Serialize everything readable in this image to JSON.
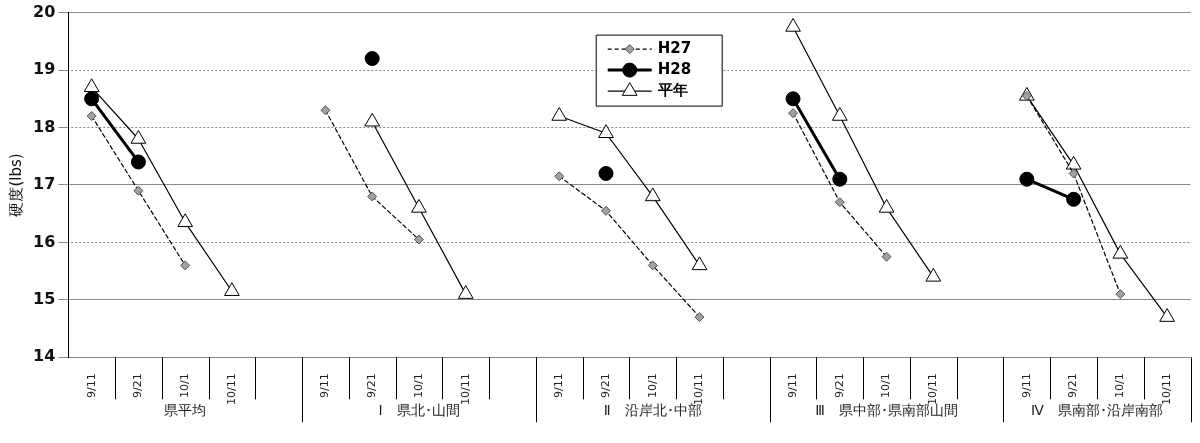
{
  "chart_data": {
    "type": "line",
    "ylabel": "硬度(lbs)",
    "categories": [
      "9/11",
      "9/21",
      "10/1",
      "10/11",
      null,
      "9/11",
      "9/21",
      "10/1",
      "10/11",
      null,
      "9/11",
      "9/21",
      "10/1",
      "10/11",
      null,
      "9/11",
      "9/21",
      "10/1",
      "10/11",
      null,
      "9/11",
      "9/21",
      "10/1",
      "10/11"
    ],
    "annotations": [
      "県平均",
      "Ⅰ　県北･山間",
      "Ⅱ　沿岸北･中部",
      "Ⅲ　県中部･県南部山間",
      "Ⅳ　県南部･沿岸南部"
    ],
    "series": [
      {
        "name": "H27",
        "color": "#a0a0a0",
        "marker": "diamond",
        "line_style": "dashed",
        "values": [
          18.2,
          16.9,
          15.6,
          null,
          null,
          18.3,
          16.8,
          16.05,
          null,
          null,
          17.15,
          16.55,
          15.6,
          14.7,
          null,
          18.25,
          16.7,
          15.75,
          null,
          null,
          18.55,
          17.2,
          15.1,
          null
        ]
      },
      {
        "name": "H28",
        "color": "#000000",
        "marker": "circle",
        "line_style": "solid",
        "values": [
          18.5,
          17.4,
          null,
          null,
          null,
          null,
          19.2,
          null,
          null,
          null,
          null,
          17.2,
          null,
          null,
          null,
          18.5,
          17.1,
          null,
          null,
          null,
          17.1,
          16.75,
          null,
          null
        ]
      },
      {
        "name": "平年",
        "color": "#ffffff",
        "marker": "triangle",
        "line_style": "solid",
        "values": [
          18.7,
          17.8,
          16.35,
          15.15,
          null,
          null,
          18.1,
          16.6,
          15.1,
          null,
          18.2,
          17.9,
          16.8,
          15.6,
          null,
          19.75,
          18.2,
          16.6,
          15.4,
          null,
          18.55,
          17.35,
          15.8,
          14.7
        ]
      }
    ],
    "ylim": [
      14,
      20
    ],
    "yticks": [
      14,
      15,
      16,
      17,
      18,
      19,
      20
    ],
    "grid": "y",
    "legend": "top"
  }
}
